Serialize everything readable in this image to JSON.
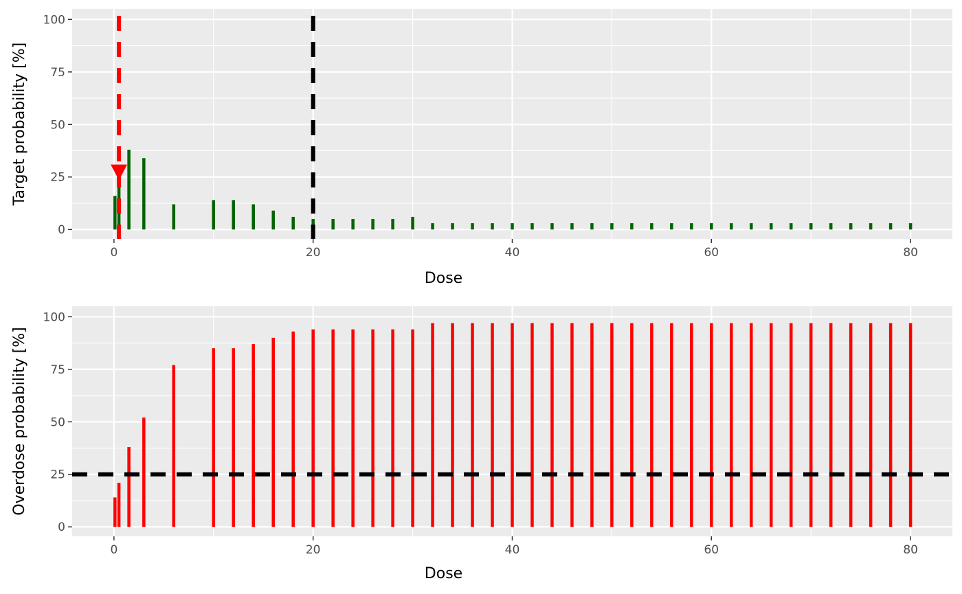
{
  "chart_data": [
    {
      "type": "bar",
      "xlabel": "Dose",
      "ylabel": "Target probability [%]",
      "xlim": [
        -4.2,
        84.2
      ],
      "ylim": [
        -4.5,
        105
      ],
      "x_ticks": [
        0,
        20,
        40,
        60,
        80
      ],
      "y_ticks": [
        0,
        25,
        50,
        75,
        100
      ],
      "grid": true,
      "bar_color": "#006400",
      "x": [
        0.1,
        0.5,
        1.5,
        3,
        6,
        10,
        12,
        14,
        16,
        18,
        20,
        22,
        24,
        26,
        28,
        30,
        32,
        34,
        36,
        38,
        40,
        42,
        44,
        46,
        48,
        50,
        52,
        54,
        56,
        58,
        60,
        62,
        64,
        66,
        68,
        70,
        72,
        74,
        76,
        78,
        80
      ],
      "values": [
        16,
        25,
        38,
        34,
        12,
        14,
        14,
        12,
        9,
        6,
        5,
        5,
        5,
        5,
        5,
        6,
        3,
        3,
        3,
        3,
        3,
        3,
        3,
        3,
        3,
        3,
        3,
        3,
        3,
        3,
        3,
        3,
        3,
        3,
        3,
        3,
        3,
        3,
        3,
        3,
        3
      ],
      "reference_lines": [
        {
          "axis": "x",
          "value": 0.5,
          "color": "#ff0000"
        },
        {
          "axis": "x",
          "value": 20,
          "color": "#000000"
        }
      ],
      "marker": {
        "x": 0.5,
        "y": 27,
        "shape": "triangle-down",
        "color": "#ff0000"
      }
    },
    {
      "type": "bar",
      "xlabel": "Dose",
      "ylabel": "Overdose probability [%]",
      "xlim": [
        -4.2,
        84.2
      ],
      "ylim": [
        -4.5,
        105
      ],
      "x_ticks": [
        0,
        20,
        40,
        60,
        80
      ],
      "y_ticks": [
        0,
        25,
        50,
        75,
        100
      ],
      "grid": true,
      "bar_color": "#ff0000",
      "x": [
        0.1,
        0.5,
        1.5,
        3,
        6,
        10,
        12,
        14,
        16,
        18,
        20,
        22,
        24,
        26,
        28,
        30,
        32,
        34,
        36,
        38,
        40,
        42,
        44,
        46,
        48,
        50,
        52,
        54,
        56,
        58,
        60,
        62,
        64,
        66,
        68,
        70,
        72,
        74,
        76,
        78,
        80
      ],
      "values": [
        14,
        21,
        38,
        52,
        77,
        85,
        85,
        87,
        90,
        93,
        94,
        94,
        94,
        94,
        94,
        94,
        97,
        97,
        97,
        97,
        97,
        97,
        97,
        97,
        97,
        97,
        97,
        97,
        97,
        97,
        97,
        97,
        97,
        97,
        97,
        97,
        97,
        97,
        97,
        97,
        97
      ],
      "reference_lines": [
        {
          "axis": "y",
          "value": 25,
          "color": "#000000"
        }
      ]
    }
  ]
}
